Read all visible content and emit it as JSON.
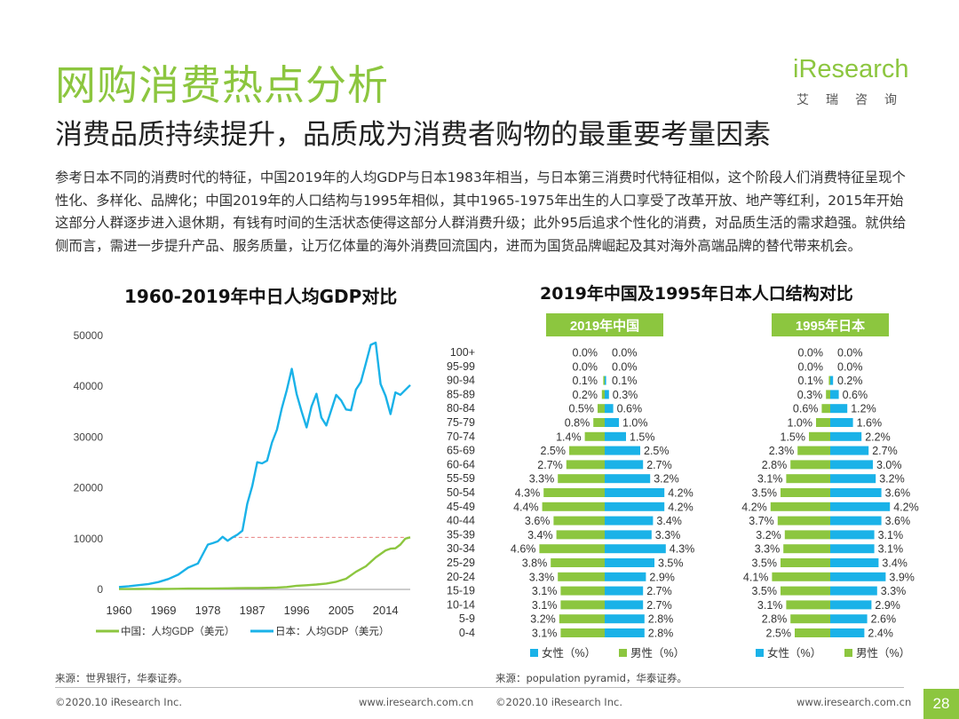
{
  "header": {
    "title": "网购消费热点分析",
    "subtitle": "消费品质持续提升，品质成为消费者购物的最重要考量因素"
  },
  "logo": {
    "word": "iResearch",
    "cn": "艾瑞咨询"
  },
  "body_text": "参考日本不同的消费时代的特征，中国2019年的人均GDP与日本1983年相当，与日本第三消费时代特征相似，这个阶段人们消费特征呈现个性化、多样化、品牌化；中国2019年的人口结构与1995年相似，其中1965-1975年出生的人口享受了改革开放、地产等红利，2015年开始这部分人群逐步进入退休期，有钱有时间的生活状态使得这部分人群消费升级；此外95后追求个性化的消费，对品质生活的需求趋强。就供给侧而言，需进一步提升产品、服务质量，让万亿体量的海外消费回流国内，进而为国货品牌崛起及其对海外高端品牌的替代带来机会。",
  "colors": {
    "brand_green": "#8cc63f",
    "japan_blue": "#1ab2e8",
    "china_green": "#8cc63f",
    "ref_line": "#e88080"
  },
  "chart_data": [
    {
      "type": "line",
      "title": "1960-2019年中日人均GDP对比",
      "x_ticks": [
        "1960",
        "1969",
        "1978",
        "1987",
        "1996",
        "2005",
        "2014"
      ],
      "y_ticks": [
        "0",
        "10000",
        "20000",
        "30000",
        "40000",
        "50000"
      ],
      "ylim": [
        0,
        50000
      ],
      "xlim": [
        1960,
        2019
      ],
      "grid": false,
      "legend_position": "bottom",
      "series": [
        {
          "name": "中国：人均GDP（美元）",
          "color": "#8cc63f",
          "x": [
            1960,
            1962,
            1964,
            1966,
            1968,
            1970,
            1972,
            1974,
            1976,
            1978,
            1980,
            1982,
            1984,
            1986,
            1988,
            1990,
            1992,
            1994,
            1996,
            1998,
            2000,
            2002,
            2004,
            2006,
            2008,
            2010,
            2012,
            2014,
            2015,
            2016,
            2017,
            2018,
            2019
          ],
          "y": [
            90,
            70,
            85,
            100,
            90,
            110,
            130,
            155,
            165,
            155,
            195,
            205,
            250,
            280,
            285,
            315,
            365,
            470,
            710,
            830,
            960,
            1150,
            1510,
            2100,
            3470,
            4550,
            6300,
            7680,
            8030,
            8090,
            8820,
            9980,
            10260
          ]
        },
        {
          "name": "日本：人均GDP（美元）",
          "color": "#1ab2e8",
          "x": [
            1960,
            1962,
            1964,
            1966,
            1968,
            1970,
            1972,
            1974,
            1976,
            1978,
            1979,
            1980,
            1981,
            1982,
            1983,
            1984,
            1985,
            1986,
            1987,
            1988,
            1989,
            1990,
            1991,
            1992,
            1993,
            1994,
            1995,
            1996,
            1997,
            1998,
            1999,
            2000,
            2001,
            2002,
            2003,
            2004,
            2005,
            2006,
            2007,
            2008,
            2009,
            2010,
            2011,
            2012,
            2013,
            2014,
            2015,
            2016,
            2017,
            2018,
            2019
          ],
          "y": [
            480,
            630,
            840,
            1060,
            1450,
            2040,
            2900,
            4280,
            5110,
            8820,
            9100,
            9460,
            10360,
            9580,
            10240,
            10790,
            11580,
            16880,
            20360,
            25060,
            24820,
            25360,
            28930,
            31460,
            35770,
            39270,
            43440,
            38440,
            35020,
            31900,
            36030,
            38530,
            33850,
            32290,
            35340,
            38300,
            37220,
            35430,
            35280,
            39340,
            40860,
            44510,
            48170,
            48600,
            40450,
            38110,
            34520,
            38790,
            38330,
            39290,
            40250
          ]
        }
      ],
      "reference_line": {
        "value": 10260,
        "from_year": 1983,
        "to_year": 2019
      }
    },
    {
      "type": "bar",
      "title": "2019年中国及1995年日本人口结构对比",
      "categories": [
        "100+",
        "95-99",
        "90-94",
        "85-89",
        "80-84",
        "75-79",
        "70-74",
        "65-69",
        "60-64",
        "55-59",
        "50-54",
        "45-49",
        "40-44",
        "35-39",
        "30-34",
        "25-29",
        "20-24",
        "15-19",
        "10-14",
        "5-9",
        "0-4"
      ],
      "panels": [
        {
          "label": "2019年中国",
          "female": [
            "0.0%",
            "0.0%",
            "0.1%",
            "0.2%",
            "0.5%",
            "0.8%",
            "1.4%",
            "2.5%",
            "2.7%",
            "3.3%",
            "4.3%",
            "4.4%",
            "3.6%",
            "3.4%",
            "4.6%",
            "3.8%",
            "3.3%",
            "3.1%",
            "3.1%",
            "3.2%",
            "3.1%"
          ],
          "male": [
            "0.0%",
            "0.0%",
            "0.1%",
            "0.3%",
            "0.6%",
            "1.0%",
            "1.5%",
            "2.5%",
            "2.7%",
            "3.2%",
            "4.2%",
            "4.2%",
            "3.4%",
            "3.3%",
            "4.3%",
            "3.5%",
            "2.9%",
            "2.7%",
            "2.7%",
            "2.8%",
            "2.8%"
          ]
        },
        {
          "label": "1995年日本",
          "female": [
            "0.0%",
            "0.0%",
            "0.1%",
            "0.3%",
            "0.6%",
            "1.0%",
            "1.5%",
            "2.3%",
            "2.8%",
            "3.1%",
            "3.5%",
            "4.2%",
            "3.7%",
            "3.2%",
            "3.3%",
            "3.5%",
            "4.1%",
            "3.5%",
            "3.1%",
            "2.8%",
            "2.5%"
          ],
          "male": [
            "0.0%",
            "0.0%",
            "0.2%",
            "0.6%",
            "1.2%",
            "1.6%",
            "2.2%",
            "2.7%",
            "3.0%",
            "3.2%",
            "3.6%",
            "4.2%",
            "3.6%",
            "3.1%",
            "3.1%",
            "3.4%",
            "3.9%",
            "3.3%",
            "2.9%",
            "2.6%",
            "2.4%"
          ]
        }
      ],
      "legend": [
        {
          "name": "女性（%）",
          "color": "#1ab2e8"
        },
        {
          "name": "男性（%）",
          "color": "#8cc63f"
        }
      ]
    }
  ],
  "sources": {
    "left": "来源：世界银行，华泰证券。",
    "right": "来源：population pyramid，华泰证券。"
  },
  "footer": {
    "left1": "©2020.10 iResearch Inc.",
    "mid1": "www.iresearch.com.cn",
    "left2": "©2020.10 iResearch Inc.",
    "mid2": "www.iresearch.com.cn",
    "page": "28"
  }
}
